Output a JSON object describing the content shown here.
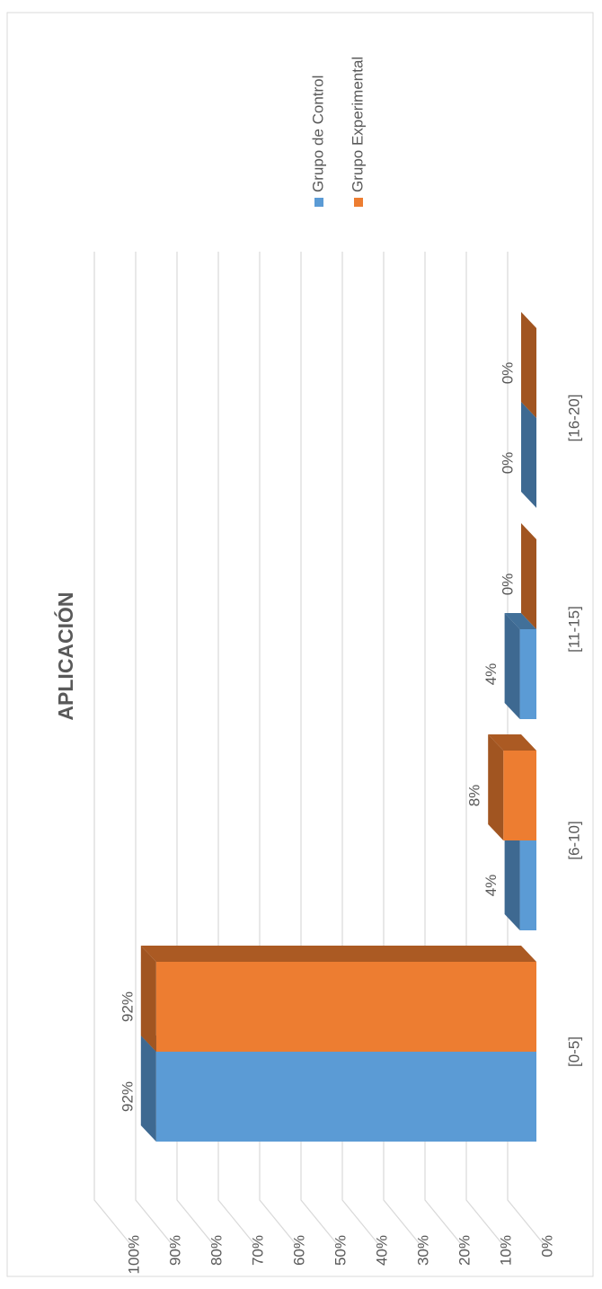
{
  "chart_data": {
    "type": "bar3d",
    "title": "APLICACIÓN",
    "categories": [
      "[0-5]",
      "[6-10]",
      "[11-15]",
      "[16-20]"
    ],
    "series": [
      {
        "name": "Grupo de Control",
        "color": "#5b9bd5",
        "values": [
          92,
          4,
          4,
          0
        ],
        "value_labels": [
          "92%",
          "4%",
          "4%",
          "0%"
        ]
      },
      {
        "name": "Grupo Experimental",
        "color": "#ed7d31",
        "values": [
          92,
          8,
          0,
          0
        ],
        "value_labels": [
          "92%",
          "8%",
          "0%",
          "0%"
        ]
      }
    ],
    "ylim": [
      0,
      100
    ],
    "yticks": [
      {
        "value": 0,
        "label": "0%"
      },
      {
        "value": 10,
        "label": "10%"
      },
      {
        "value": 20,
        "label": "20%"
      },
      {
        "value": 30,
        "label": "30%"
      },
      {
        "value": 40,
        "label": "40%"
      },
      {
        "value": 50,
        "label": "50%"
      },
      {
        "value": 60,
        "label": "60%"
      },
      {
        "value": 70,
        "label": "70%"
      },
      {
        "value": 80,
        "label": "80%"
      },
      {
        "value": 90,
        "label": "90%"
      },
      {
        "value": 100,
        "label": "100%"
      }
    ],
    "grid": true,
    "legend": "right"
  }
}
